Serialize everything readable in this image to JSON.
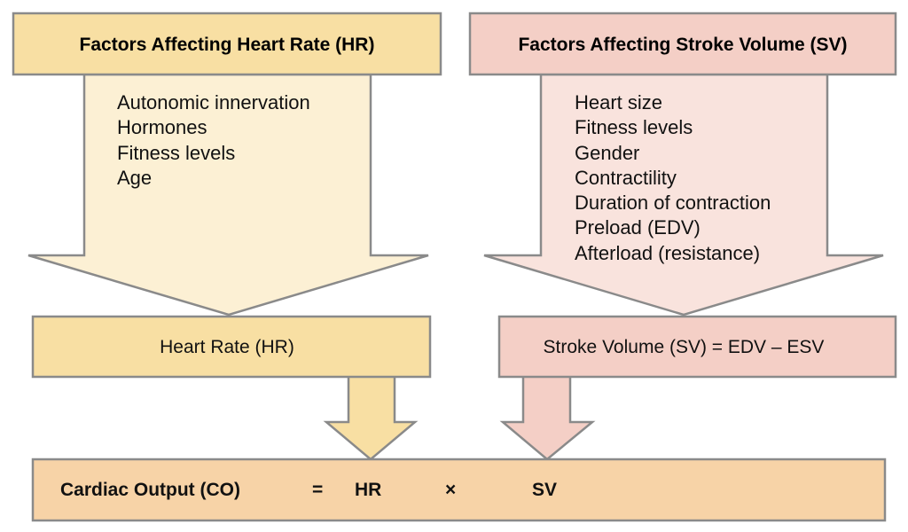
{
  "colors": {
    "hr_header": "#f8dfa3",
    "hr_arrow": "#fcf0d4",
    "sv_header": "#f4cfc6",
    "sv_arrow": "#f9e3dd",
    "co_box": "#f7d3a7",
    "stroke": "#8a8a8a"
  },
  "hr": {
    "header": "Factors Affecting Heart Rate (HR)",
    "factors": [
      "Autonomic innervation",
      "Hormones",
      "Fitness levels",
      "Age"
    ],
    "box": "Heart Rate (HR)"
  },
  "sv": {
    "header": "Factors Affecting Stroke Volume (SV)",
    "factors": [
      "Heart size",
      "Fitness levels",
      "Gender",
      "Contractility",
      "Duration of contraction",
      "Preload (EDV)",
      "Afterload (resistance)"
    ],
    "box": "Stroke Volume (SV) = EDV – ESV"
  },
  "co": {
    "label": "Cardiac Output (CO)",
    "equals": "=",
    "hr": "HR",
    "times": "×",
    "sv": "SV"
  }
}
